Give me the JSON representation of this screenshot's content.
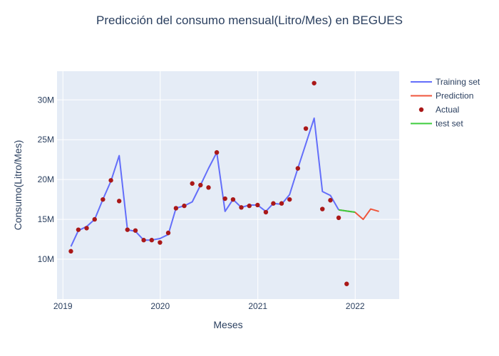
{
  "chart_data": {
    "type": "line",
    "title": "Predicción del consumo mensual(Litro/Mes) en BEGUES",
    "xlabel": "Meses",
    "ylabel": "Consumo(Litro/Mes)",
    "x_axis": {
      "type": "date",
      "range": [
        "2018-12-10",
        "2022-06-15"
      ],
      "ticks": [
        {
          "value": "2019-01-01",
          "label": "2019"
        },
        {
          "value": "2020-01-01",
          "label": "2020"
        },
        {
          "value": "2021-01-01",
          "label": "2021"
        },
        {
          "value": "2022-01-01",
          "label": "2022"
        }
      ]
    },
    "y_axis": {
      "range": [
        5000000,
        33600000
      ],
      "ticks": [
        {
          "value": 10000000,
          "label": "10M"
        },
        {
          "value": 15000000,
          "label": "15M"
        },
        {
          "value": 20000000,
          "label": "20M"
        },
        {
          "value": 25000000,
          "label": "25M"
        },
        {
          "value": 30000000,
          "label": "30M"
        }
      ]
    },
    "grid": true,
    "legend_position": "top-right",
    "series": [
      {
        "name": "Training set",
        "mode": "line",
        "color": "#636efa",
        "x": [
          "2019-01-31",
          "2019-02-28",
          "2019-03-31",
          "2019-04-30",
          "2019-05-31",
          "2019-06-30",
          "2019-07-31",
          "2019-08-31",
          "2019-09-30",
          "2019-10-31",
          "2019-11-30",
          "2019-12-31",
          "2020-01-31",
          "2020-02-29",
          "2020-03-31",
          "2020-04-30",
          "2020-05-31",
          "2020-06-30",
          "2020-07-31",
          "2020-08-31",
          "2020-09-30",
          "2020-10-31",
          "2020-11-30",
          "2020-12-31",
          "2021-01-31",
          "2021-02-28",
          "2021-03-31",
          "2021-04-30",
          "2021-05-31",
          "2021-06-30",
          "2021-07-31",
          "2021-08-31",
          "2021-09-30",
          "2021-10-31"
        ],
        "values": [
          11600000,
          13600000,
          14100000,
          15000000,
          17500000,
          19800000,
          23000000,
          13700000,
          13500000,
          12400000,
          12400000,
          12600000,
          13100000,
          16400000,
          16700000,
          17200000,
          19300000,
          21400000,
          23400000,
          16000000,
          17500000,
          16500000,
          16800000,
          16800000,
          16000000,
          17000000,
          16900000,
          18100000,
          21400000,
          24500000,
          27700000,
          18500000,
          18000000,
          16200000
        ]
      },
      {
        "name": "Prediction",
        "mode": "line",
        "color": "#ef553b",
        "x": [
          "2021-10-31",
          "2021-11-30",
          "2021-12-31",
          "2022-01-31",
          "2022-02-28",
          "2022-03-31"
        ],
        "values": [
          16200000,
          16050000,
          15900000,
          15000000,
          16300000,
          16000000
        ]
      },
      {
        "name": "Actual",
        "mode": "markers",
        "color": "#aa1818",
        "x": [
          "2019-01-31",
          "2019-02-28",
          "2019-03-31",
          "2019-04-30",
          "2019-05-31",
          "2019-06-30",
          "2019-07-31",
          "2019-08-31",
          "2019-09-30",
          "2019-10-31",
          "2019-11-30",
          "2019-12-31",
          "2020-01-31",
          "2020-02-29",
          "2020-03-31",
          "2020-04-30",
          "2020-05-31",
          "2020-06-30",
          "2020-07-31",
          "2020-08-31",
          "2020-09-30",
          "2020-10-31",
          "2020-11-30",
          "2020-12-31",
          "2021-01-31",
          "2021-02-28",
          "2021-03-31",
          "2021-04-30",
          "2021-05-31",
          "2021-06-30",
          "2021-07-31",
          "2021-08-31",
          "2021-09-30",
          "2021-10-31",
          "2021-11-30"
        ],
        "values": [
          11000000,
          13700000,
          13900000,
          15000000,
          17500000,
          19900000,
          17300000,
          13700000,
          13600000,
          12400000,
          12400000,
          12100000,
          13300000,
          16400000,
          16700000,
          19500000,
          19300000,
          19000000,
          23400000,
          17600000,
          17500000,
          16500000,
          16700000,
          16800000,
          15900000,
          17000000,
          17000000,
          17500000,
          21400000,
          26400000,
          32100000,
          16300000,
          17400000,
          15200000,
          6900000
        ]
      },
      {
        "name": "test set",
        "mode": "line",
        "color": "#3ccc3c",
        "x": [
          "2021-10-31",
          "2021-11-30",
          "2021-12-31"
        ],
        "values": [
          16200000,
          16050000,
          15900000
        ]
      }
    ]
  }
}
